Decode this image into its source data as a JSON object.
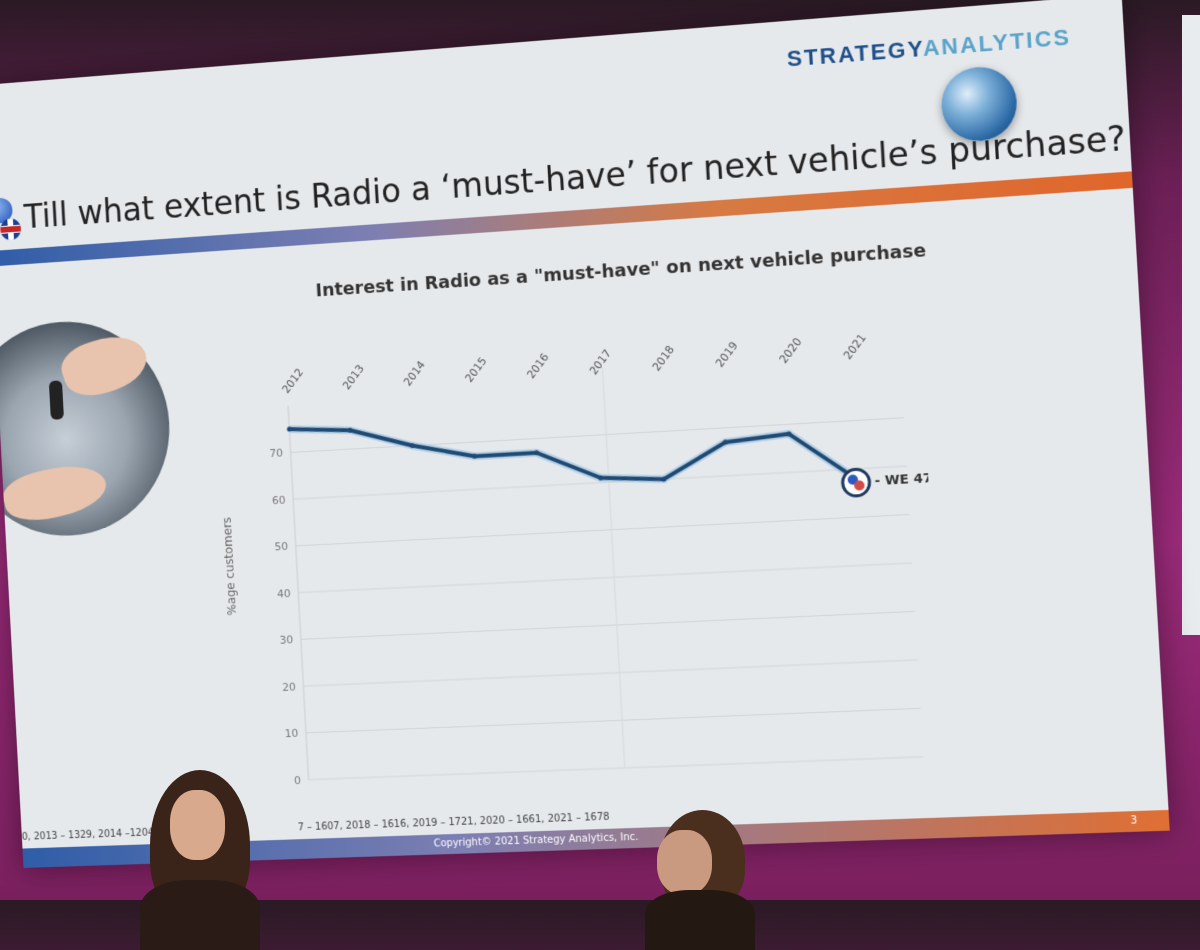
{
  "slide": {
    "brand_part1": "STRATEGY",
    "brand_part2": "ANALYTICS",
    "title": "Till what extent is Radio a ‘must-have’ for next vehicle’s purchase?",
    "subtitle": "Interest in Radio as a \"must-have\" on next vehicle purchase",
    "footnote": "0, 2013 – 1329, 2014 –1204, 2015 –1204, 20",
    "footnote2": "7 – 1607, 2018 – 1616, 2019 – 1721, 2020 – 1661, 2021 – 1678",
    "copyright": "Copyright© 2021 Strategy Analytics, Inc.",
    "page_number": "3",
    "colors": {
      "line": "#1f4a73",
      "accent_orange": "#e0662b",
      "accent_blue": "#2f5da8"
    }
  },
  "chart_data": {
    "type": "line",
    "title": "Interest in Radio as a \"must-have\" on next vehicle purchase",
    "ylabel": "%age customers",
    "categories": [
      "2012",
      "2013",
      "2014",
      "2015",
      "2016",
      "2017",
      "2018",
      "2019",
      "2020",
      "2021"
    ],
    "series": [
      {
        "values": [
          75,
          74,
          70,
          67,
          67,
          61,
          60,
          67,
          68,
          58
        ]
      }
    ],
    "yticks": [
      0,
      10,
      20,
      30,
      40,
      50,
      60,
      70
    ],
    "ylim": [
      0,
      80
    ],
    "end_label": "- WE 47",
    "grid": true
  }
}
